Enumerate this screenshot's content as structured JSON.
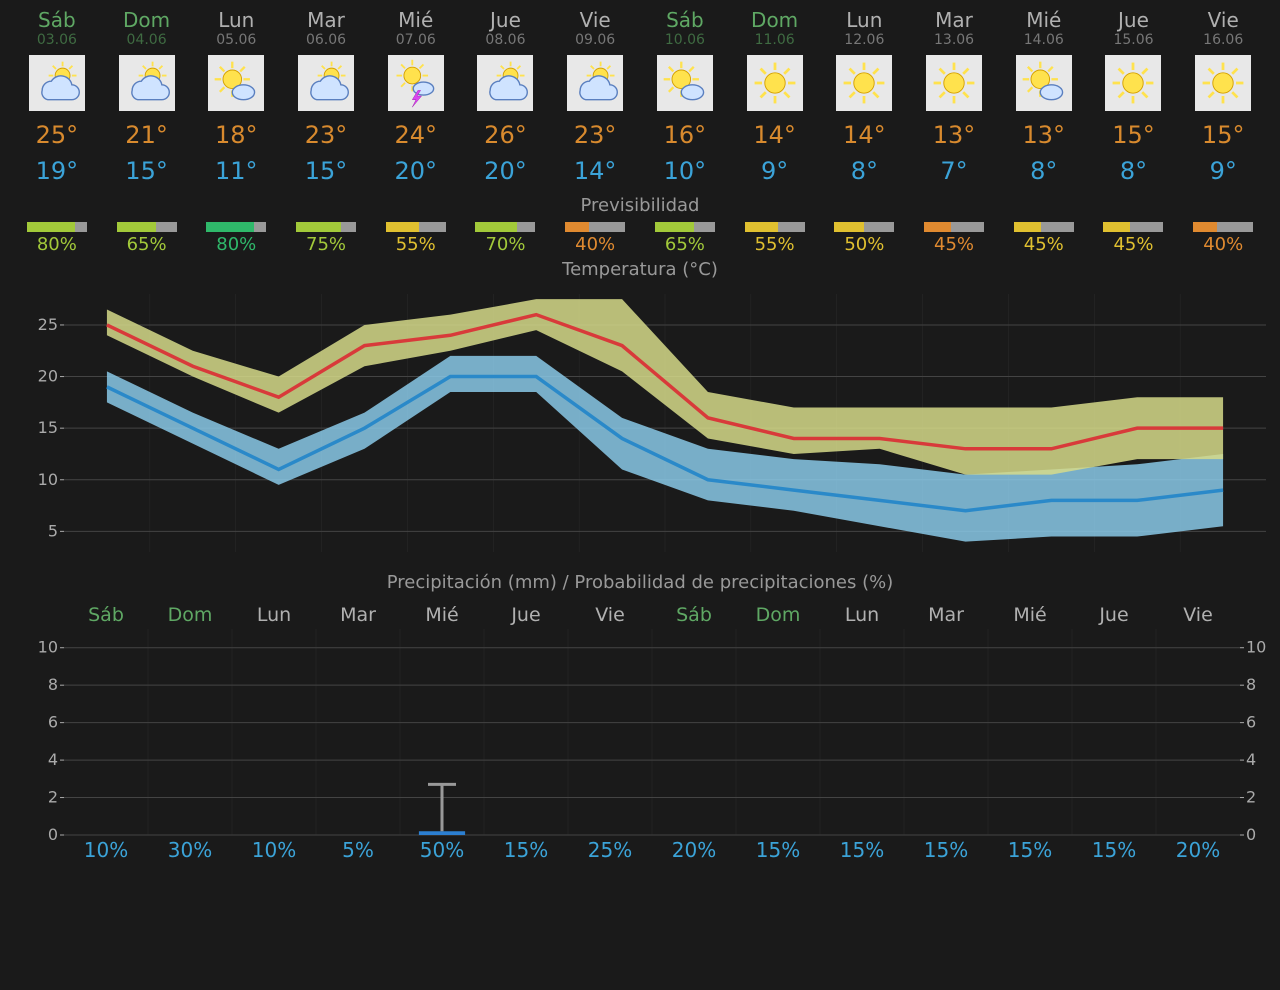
{
  "labels": {
    "predictability": "Previsibilidad",
    "temperature": "Temperatura (°C)",
    "precipitation": "Precipitación (mm) / Probabilidad de precipitaciones (%)"
  },
  "colors": {
    "background": "#1a1a1a",
    "weekend_text": "#5fa864",
    "weekday_text": "#b0b0b0",
    "weekend_date": "#3f6b42",
    "weekday_date": "#777777",
    "high_temp": "#d88a2e",
    "low_temp": "#3ba3d8",
    "section_label": "#999999",
    "pred_bar_bg": "#999999",
    "grid": "#444444",
    "ytick": "#aaaaaa",
    "high_line": "#d83a3a",
    "high_band": "#d6db8a",
    "low_line": "#2a89c9",
    "low_band": "#8ac9e8",
    "precip_bar": "#2c7fd1",
    "precip_whisker": "#999999"
  },
  "days": [
    {
      "name": "Sáb",
      "date": "03.06",
      "weekend": true,
      "icon": "partly-cloudy",
      "high": 25,
      "low": 19,
      "pred": 80,
      "pred_color": "#a2c93a",
      "precip_prob": 10,
      "precip_mm": 0,
      "precip_err": 0
    },
    {
      "name": "Dom",
      "date": "04.06",
      "weekend": true,
      "icon": "partly-cloudy",
      "high": 21,
      "low": 15,
      "pred": 65,
      "pred_color": "#a2c93a",
      "precip_prob": 30,
      "precip_mm": 0,
      "precip_err": 0
    },
    {
      "name": "Lun",
      "date": "05.06",
      "weekend": false,
      "icon": "mostly-sunny",
      "high": 18,
      "low": 11,
      "pred": 80,
      "pred_color": "#2fb86a",
      "precip_prob": 10,
      "precip_mm": 0,
      "precip_err": 0
    },
    {
      "name": "Mar",
      "date": "06.06",
      "weekend": false,
      "icon": "partly-cloudy",
      "high": 23,
      "low": 15,
      "pred": 75,
      "pred_color": "#a2c93a",
      "precip_prob": 5,
      "precip_mm": 0,
      "precip_err": 0
    },
    {
      "name": "Mié",
      "date": "07.06",
      "weekend": false,
      "icon": "storm",
      "high": 24,
      "low": 20,
      "pred": 55,
      "pred_color": "#e0c030",
      "precip_prob": 50,
      "precip_mm": 0.2,
      "precip_err": 2.7
    },
    {
      "name": "Jue",
      "date": "08.06",
      "weekend": false,
      "icon": "partly-cloudy",
      "high": 26,
      "low": 20,
      "pred": 70,
      "pred_color": "#a2c93a",
      "precip_prob": 15,
      "precip_mm": 0,
      "precip_err": 0
    },
    {
      "name": "Vie",
      "date": "09.06",
      "weekend": false,
      "icon": "partly-cloudy",
      "high": 23,
      "low": 14,
      "pred": 40,
      "pred_color": "#e08a30",
      "precip_prob": 25,
      "precip_mm": 0,
      "precip_err": 0
    },
    {
      "name": "Sáb",
      "date": "10.06",
      "weekend": true,
      "icon": "mostly-sunny",
      "high": 16,
      "low": 10,
      "pred": 65,
      "pred_color": "#a2c93a",
      "precip_prob": 20,
      "precip_mm": 0,
      "precip_err": 0
    },
    {
      "name": "Dom",
      "date": "11.06",
      "weekend": true,
      "icon": "sunny",
      "high": 14,
      "low": 9,
      "pred": 55,
      "pred_color": "#e0c030",
      "precip_prob": 15,
      "precip_mm": 0,
      "precip_err": 0
    },
    {
      "name": "Lun",
      "date": "12.06",
      "weekend": false,
      "icon": "sunny",
      "high": 14,
      "low": 8,
      "pred": 50,
      "pred_color": "#e0c030",
      "precip_prob": 15,
      "precip_mm": 0,
      "precip_err": 0
    },
    {
      "name": "Mar",
      "date": "13.06",
      "weekend": false,
      "icon": "sunny",
      "high": 13,
      "low": 7,
      "pred": 45,
      "pred_color": "#e08a30",
      "precip_prob": 15,
      "precip_mm": 0,
      "precip_err": 0
    },
    {
      "name": "Mié",
      "date": "14.06",
      "weekend": false,
      "icon": "mostly-sunny",
      "high": 13,
      "low": 8,
      "pred": 45,
      "pred_color": "#e0c030",
      "precip_prob": 15,
      "precip_mm": 0,
      "precip_err": 0
    },
    {
      "name": "Jue",
      "date": "15.06",
      "weekend": false,
      "icon": "sunny",
      "high": 15,
      "low": 8,
      "pred": 45,
      "pred_color": "#e0c030",
      "precip_prob": 15,
      "precip_mm": 0,
      "precip_err": 0
    },
    {
      "name": "Vie",
      "date": "16.06",
      "weekend": false,
      "icon": "sunny",
      "high": 15,
      "low": 9,
      "pred": 40,
      "pred_color": "#e08a30",
      "precip_prob": 20,
      "precip_mm": 0,
      "precip_err": 0
    }
  ],
  "temp_chart": {
    "ylim": [
      3,
      28
    ],
    "yticks": [
      5,
      10,
      15,
      20,
      25
    ],
    "high_upper": [
      26.5,
      22.5,
      20,
      25,
      26,
      27.5,
      27.5,
      18.5,
      17,
      17,
      17,
      17,
      18,
      18
    ],
    "high_center": [
      25,
      21,
      18,
      23,
      24,
      26,
      23,
      16,
      14,
      14,
      13,
      13,
      15,
      15
    ],
    "high_lower": [
      24,
      20,
      16.5,
      21,
      22.5,
      24.5,
      20.5,
      14,
      12.5,
      13,
      10.5,
      10.5,
      12,
      12
    ],
    "low_upper": [
      20.5,
      16.5,
      13,
      16.5,
      22,
      22,
      16,
      13,
      12,
      11.5,
      10.5,
      11,
      11.5,
      12.5
    ],
    "low_center": [
      19,
      15,
      11,
      15,
      20,
      20,
      14,
      10,
      9,
      8,
      7,
      8,
      8,
      9
    ],
    "low_lower": [
      17.5,
      13.5,
      9.5,
      13,
      18.5,
      18.5,
      11,
      8,
      7,
      5.5,
      4,
      4.5,
      4.5,
      5.5
    ],
    "grid_color": "#444444",
    "background": "#1a1a1a"
  },
  "precip_chart": {
    "ylim": [
      0,
      11
    ],
    "yticks_left": [
      0,
      2,
      4,
      6,
      8,
      10
    ],
    "yticks_right": [
      0,
      2,
      4,
      6,
      8,
      10
    ],
    "grid_color": "#444444"
  }
}
